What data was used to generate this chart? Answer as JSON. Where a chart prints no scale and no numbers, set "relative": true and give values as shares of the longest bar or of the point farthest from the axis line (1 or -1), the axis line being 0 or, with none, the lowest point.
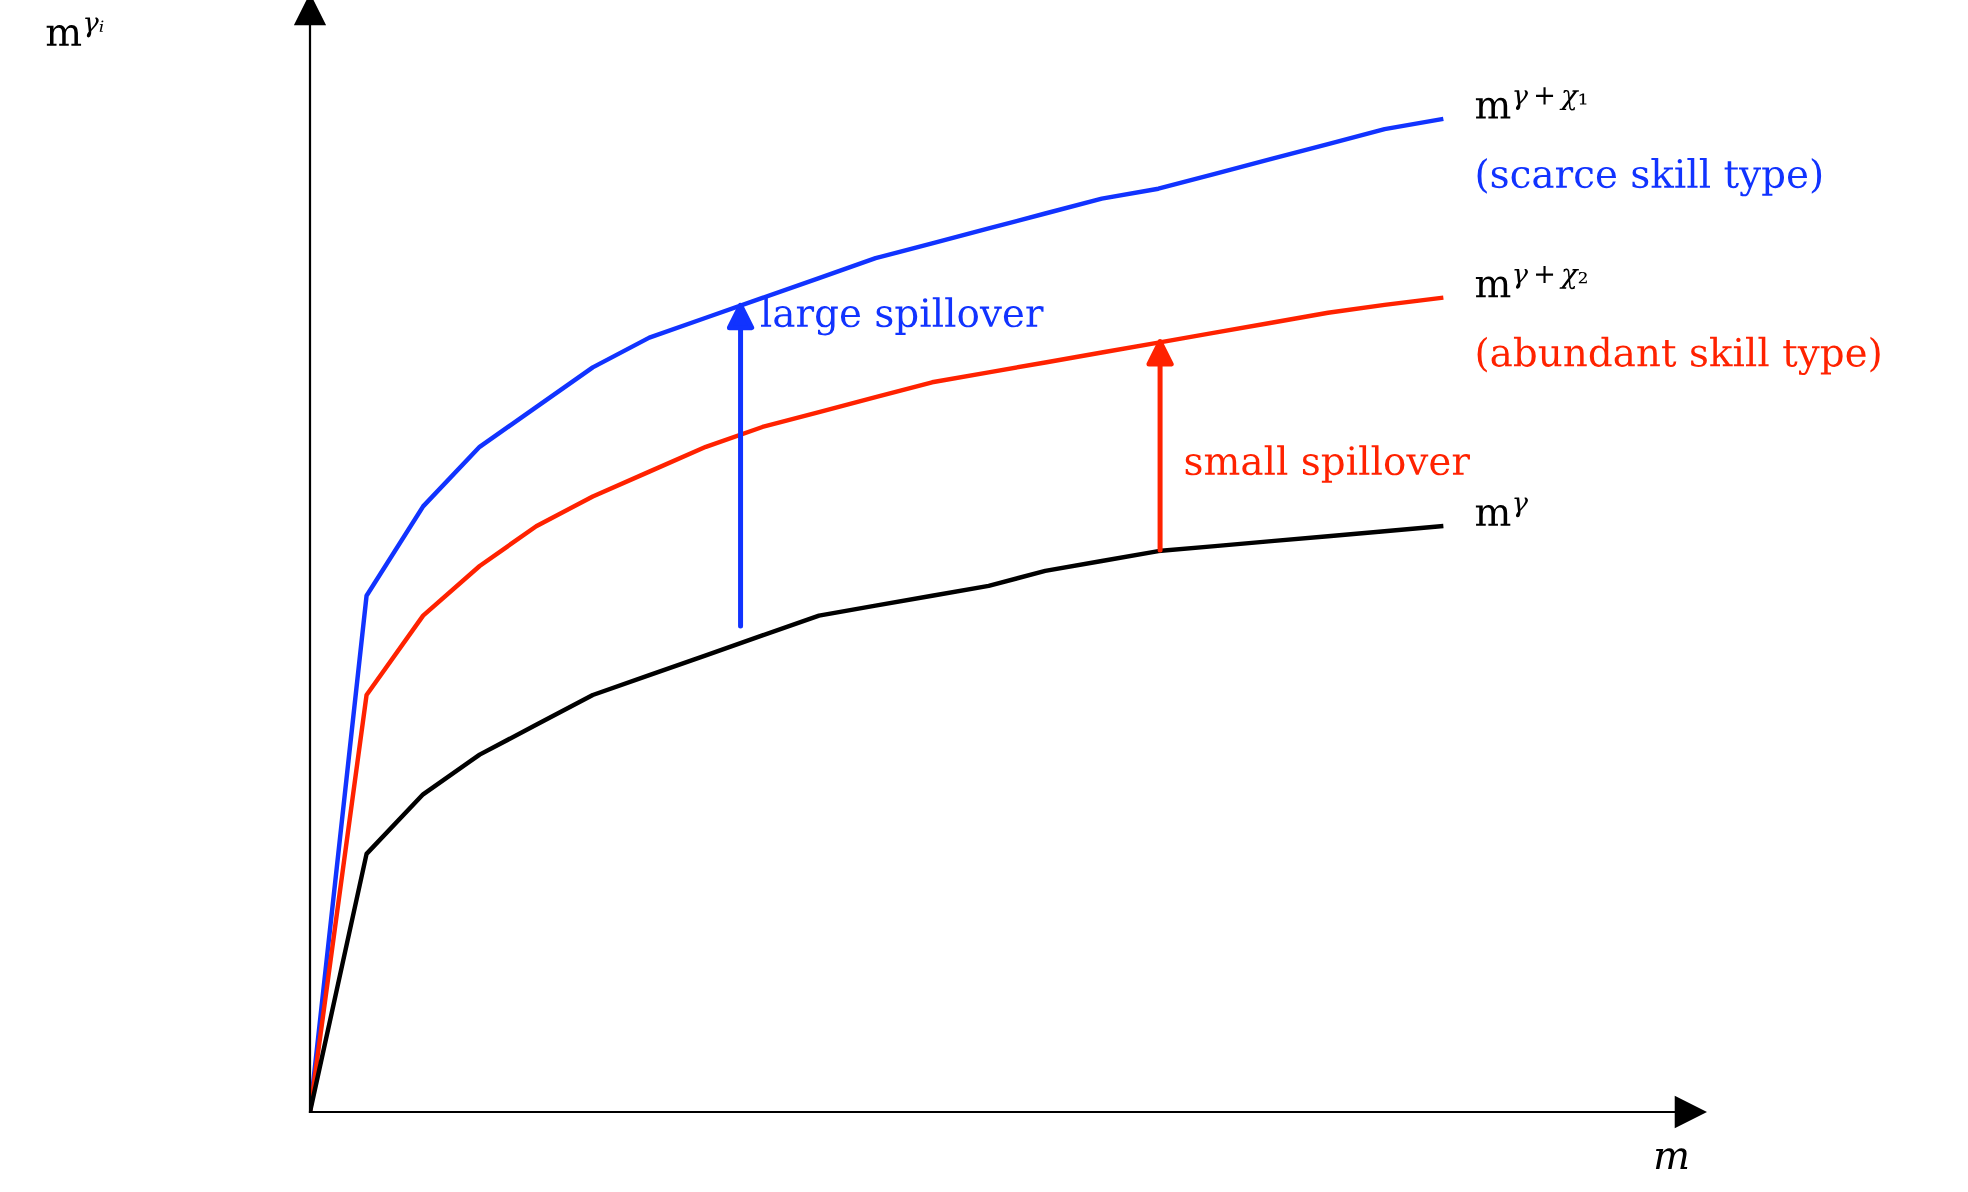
{
  "chart_data": {
    "type": "line",
    "relative": true,
    "xlabel": "m",
    "ylabel": "m$^{γᵢ}$",
    "categories": [
      null,
      null,
      null,
      null,
      null,
      null,
      null,
      null,
      null,
      null,
      null,
      null,
      null,
      null,
      null,
      null,
      null,
      null,
      null,
      null,
      null
    ],
    "series": [
      {
        "name": "m$^{γ+χ₁}$",
        "color": "#1133ff",
        "values": [
          0,
          0.52,
          0.61,
          0.67,
          0.71,
          0.75,
          0.78,
          0.8,
          0.82,
          0.84,
          0.86,
          0.875,
          0.89,
          0.905,
          0.92,
          0.93,
          0.945,
          0.96,
          0.975,
          0.99,
          1.0
        ]
      },
      {
        "name": "m$^{γ+χ₂}$",
        "color": "#ff2200",
        "values": [
          0,
          0.42,
          0.5,
          0.55,
          0.59,
          0.62,
          0.645,
          0.67,
          0.69,
          0.705,
          0.72,
          0.735,
          0.745,
          0.755,
          0.765,
          0.775,
          0.785,
          0.795,
          0.805,
          0.813,
          0.82
        ]
      },
      {
        "name": "m$^{γ}$",
        "color": "#000000",
        "values": [
          0,
          0.26,
          0.32,
          0.36,
          0.39,
          0.42,
          0.44,
          0.46,
          0.48,
          0.5,
          0.51,
          0.52,
          0.53,
          0.545,
          0.555,
          0.565,
          0.57,
          0.575,
          0.58,
          0.585,
          0.59
        ]
      }
    ],
    "annotations": [
      "(scarce skill type)",
      "(abundant skill type)",
      "large spillover",
      "small spillover"
    ],
    "legend": false,
    "grid": false,
    "marker": "none",
    "line_style": "solid"
  }
}
